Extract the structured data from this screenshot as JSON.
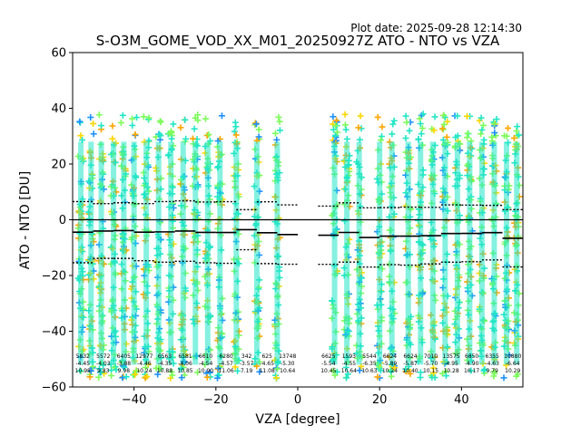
{
  "chart_data": {
    "type": "scatter",
    "plot_date": "Plot date: 2025-09-28 12:14:30",
    "title": "S-O3M_GOME_VOD_XX_M01_20250927Z ATO - NTO vs VZA",
    "xlabel": "VZA [degree]",
    "ylabel": "ATO - NTO [DU]",
    "xlim": [
      -55,
      55
    ],
    "ylim": [
      -60,
      60
    ],
    "xticks": [
      -40,
      -20,
      0,
      20,
      40
    ],
    "yticks": [
      -60,
      -40,
      -20,
      0,
      20,
      40,
      60
    ],
    "reference_line_y": 0,
    "colors": {
      "blue": "#1e90ff",
      "cyan": "#22e6c6",
      "green": "#7cfc5a",
      "yellow": "#ffd700",
      "orange": "#ffa500",
      "darkblue": "#0000cd"
    },
    "bin_stats": [
      {
        "vza": -52.5,
        "count": "5832",
        "mean": -4.45,
        "std": 10.98
      },
      {
        "vza": -47.5,
        "count": "5572",
        "mean": -4.03,
        "std": 9.83
      },
      {
        "vza": -42.5,
        "count": "6405",
        "mean": -3.88,
        "std": 9.98
      },
      {
        "vza": -37.5,
        "count": "12977",
        "mean": -4.46,
        "std": 10.24
      },
      {
        "vza": -32.5,
        "count": "6563",
        "mean": -4.35,
        "std": 10.88
      },
      {
        "vza": -27.5,
        "count": "6581",
        "mean": -4.06,
        "std": 10.85
      },
      {
        "vza": -22.5,
        "count": "6610",
        "mean": -4.54,
        "std": 10.9
      },
      {
        "vza": -17.5,
        "count": "6280",
        "mean": -4.57,
        "std": 11.06
      },
      {
        "vza": -12.5,
        "count": "342",
        "mean": -3.57,
        "std": 7.19
      },
      {
        "vza": -7.5,
        "count": "625",
        "mean": -4.65,
        "std": 11.08
      },
      {
        "vza": -2.5,
        "count": "13748",
        "mean": -5.3,
        "std": 10.64
      },
      {
        "vza": 7.5,
        "count": "6625",
        "mean": -5.54,
        "std": 10.45
      },
      {
        "vza": 12.5,
        "count": "1593",
        "mean": -4.55,
        "std": 10.64
      },
      {
        "vza": 17.5,
        "count": "5544",
        "mean": -6.35,
        "std": 10.63
      },
      {
        "vza": 22.5,
        "count": "6624",
        "mean": -5.89,
        "std": 10.24
      },
      {
        "vza": 27.5,
        "count": "6624",
        "mean": -5.87,
        "std": 10.4
      },
      {
        "vza": 32.5,
        "count": "7010",
        "mean": -5.7,
        "std": 10.15
      },
      {
        "vza": 37.5,
        "count": "13575",
        "mean": -4.95,
        "std": 10.28
      },
      {
        "vza": 42.5,
        "count": "6850",
        "mean": -4.9,
        "std": 10.17
      },
      {
        "vza": 47.5,
        "count": "6355",
        "mean": -4.63,
        "std": 9.79
      },
      {
        "vza": 52.5,
        "count": "10880",
        "mean": -6.64,
        "std": 10.29
      }
    ],
    "scatter_columns_vza": [
      -53,
      -50.5,
      -48,
      -45,
      -42.5,
      -40,
      -37,
      -34,
      -31,
      -28,
      -25,
      -22,
      -19,
      -15,
      -10,
      -5,
      9,
      12,
      15,
      20,
      23,
      27,
      30,
      33,
      36,
      39,
      42,
      45,
      48,
      51,
      53.5
    ]
  }
}
